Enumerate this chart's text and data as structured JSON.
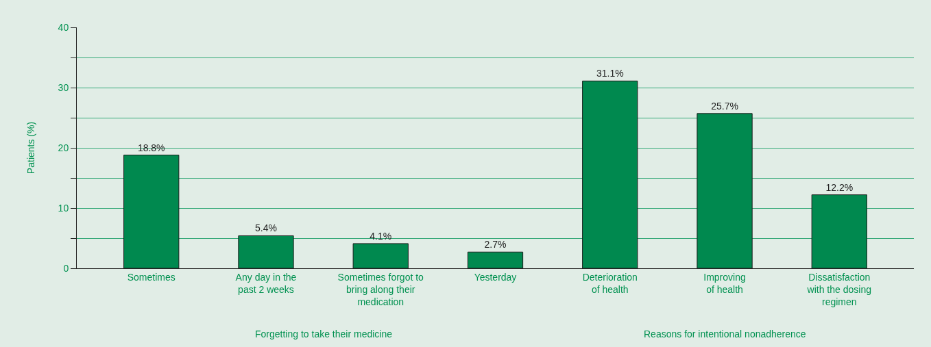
{
  "chart_data": {
    "type": "bar",
    "ylabel": "Patients (%)",
    "categories": [
      "Sometimes",
      "Any day in the\npast 2 weeks",
      "Sometimes forgot to\nbring along their\nmedication",
      "Yesterday",
      "Deterioration\nof health",
      "Improving\nof health",
      "Dissatisfaction\nwith the dosing\nregimen"
    ],
    "values": [
      18.8,
      5.4,
      4.1,
      2.7,
      31.1,
      25.7,
      12.2
    ],
    "value_labels": [
      "18.8%",
      "5.4%",
      "4.1%",
      "2.7%",
      "31.1%",
      "25.7%",
      "12.2%"
    ],
    "color": "#00894f",
    "ylim": [
      0,
      40
    ],
    "yticks": [
      0,
      {
        "value": 5,
        "label": null
      },
      10,
      {
        "value": 15,
        "label": null
      },
      20,
      {
        "value": 25,
        "label": null
      },
      30,
      {
        "value": 35,
        "label": null
      },
      40
    ],
    "grid": "y",
    "annotations": [
      "Forgetting to take their medicine",
      "Reasons for intentional nonadherence"
    ]
  }
}
